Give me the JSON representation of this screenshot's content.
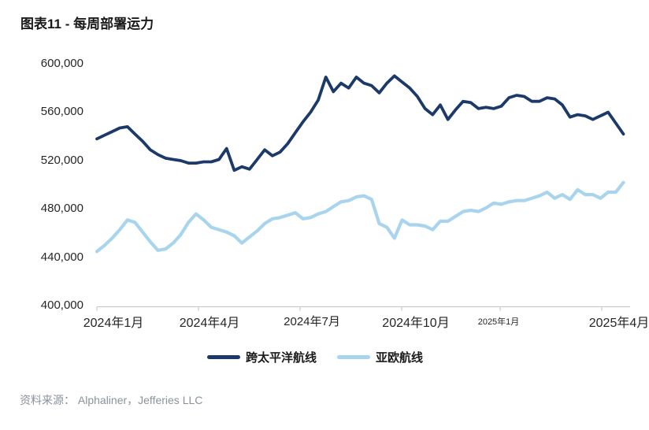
{
  "page": {
    "title": "图表11 - 每周部署运力",
    "source": "资料来源： Alphaliner，Jefferies LLC"
  },
  "chart_data": {
    "type": "line",
    "title": "图表11 - 每周部署运力",
    "x_tick_labels": [
      "2024年1月",
      "2024年4月",
      "2024年7月",
      "2024年10月",
      "2025年1月",
      "2025年4月"
    ],
    "y_tick_labels": [
      "400,000",
      "440,000",
      "480,000",
      "520,000",
      "560,000",
      "600,000"
    ],
    "ylim": [
      400000,
      600000
    ],
    "grid": false,
    "legend_position": "bottom",
    "axis_color": "#c8cbce",
    "frequency": "weekly",
    "series": [
      {
        "name": "亚欧航线",
        "color": "#a8d4ee",
        "values": [
          445000,
          450000,
          456000,
          463000,
          471000,
          469000,
          461000,
          453000,
          446000,
          447000,
          452000,
          459000,
          469000,
          476000,
          471000,
          465000,
          463000,
          461000,
          458000,
          452000,
          457000,
          462000,
          468000,
          472000,
          473000,
          475000,
          477000,
          472000,
          473000,
          476000,
          478000,
          482000,
          486000,
          487000,
          490000,
          491000,
          488000,
          468000,
          465000,
          456000,
          471000,
          467000,
          467000,
          466000,
          463000,
          470000,
          470000,
          474000,
          478000,
          479000,
          478000,
          481000,
          485000,
          484000,
          486000,
          487000,
          487000,
          489000,
          491000,
          494000,
          489000,
          492000,
          488000,
          496000,
          492000,
          492000,
          489000,
          494000,
          494000,
          502000
        ]
      },
      {
        "name": "跨太平洋航线",
        "color": "#1b3a69",
        "values": [
          538000,
          541000,
          544000,
          547000,
          548000,
          542000,
          536000,
          529000,
          525000,
          522000,
          521000,
          520000,
          518000,
          518000,
          519000,
          519000,
          521000,
          530000,
          512000,
          515000,
          513000,
          521000,
          529000,
          524000,
          527000,
          534000,
          543000,
          552000,
          560000,
          570000,
          589000,
          577000,
          584000,
          580000,
          589000,
          584000,
          582000,
          576000,
          584000,
          590000,
          585000,
          580000,
          573000,
          563000,
          558000,
          566000,
          554000,
          562000,
          569000,
          568000,
          563000,
          564000,
          563000,
          565000,
          572000,
          574000,
          573000,
          569000,
          569000,
          572000,
          571000,
          566000,
          556000,
          558000,
          557000,
          554000,
          557000,
          560000,
          551000,
          542000
        ]
      }
    ]
  }
}
